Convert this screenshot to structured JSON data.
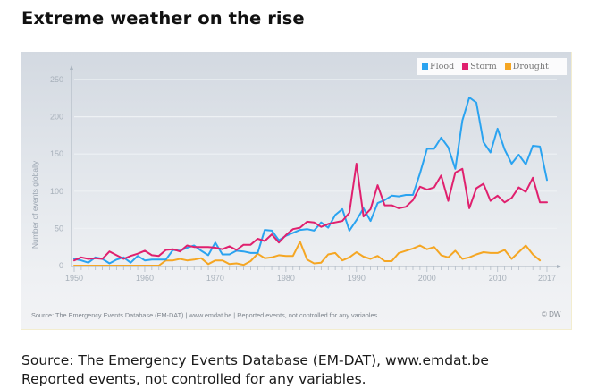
{
  "page": {
    "title": "Extreme weather on the rise",
    "footer_lines": [
      "Source: The Emergency Events Database (EM-DAT), www.emdat.be",
      "Reported events, not controlled for any variables."
    ]
  },
  "panel": {
    "source_note": "Source: The Emergency Events Database (EM-DAT) | www.emdat.be | Reported events, not controlled for any variables",
    "credit": "© DW"
  },
  "chart_data": {
    "type": "line",
    "title": "Extreme weather on the rise",
    "xlabel": "",
    "ylabel": "Number of events globally",
    "xlim": [
      1950,
      2017
    ],
    "ylim": [
      0,
      250
    ],
    "yticks": [
      0,
      50,
      100,
      150,
      200,
      250
    ],
    "xticks": [
      1950,
      1960,
      1970,
      1980,
      1990,
      2000,
      2010,
      2017
    ],
    "grid": true,
    "legend_position": "top-right",
    "x": [
      1950,
      1951,
      1952,
      1953,
      1954,
      1955,
      1956,
      1957,
      1958,
      1959,
      1960,
      1961,
      1962,
      1963,
      1964,
      1965,
      1966,
      1967,
      1968,
      1969,
      1970,
      1971,
      1972,
      1973,
      1974,
      1975,
      1976,
      1977,
      1978,
      1979,
      1980,
      1981,
      1982,
      1983,
      1984,
      1985,
      1986,
      1987,
      1988,
      1989,
      1990,
      1991,
      1992,
      1993,
      1994,
      1995,
      1996,
      1997,
      1998,
      1999,
      2000,
      2001,
      2002,
      2003,
      2004,
      2005,
      2006,
      2007,
      2008,
      2009,
      2010,
      2011,
      2012,
      2013,
      2014,
      2015,
      2016,
      2017
    ],
    "series": [
      {
        "name": "Flood",
        "color": "#2aa3f0",
        "values": [
          9,
          7,
          4,
          11,
          9,
          3,
          8,
          11,
          4,
          13,
          7,
          8,
          8,
          8,
          21,
          20,
          24,
          27,
          20,
          14,
          31,
          15,
          15,
          20,
          19,
          17,
          17,
          48,
          47,
          34,
          40,
          44,
          48,
          49,
          47,
          58,
          51,
          68,
          76,
          47,
          61,
          77,
          60,
          84,
          88,
          94,
          93,
          95,
          95,
          124,
          157,
          157,
          172,
          159,
          130,
          195,
          226,
          219,
          166,
          152,
          184,
          156,
          137,
          149,
          136,
          161,
          160,
          115
        ]
      },
      {
        "name": "Storm",
        "color": "#e0206e",
        "values": [
          7,
          11,
          9,
          10,
          9,
          19,
          14,
          9,
          13,
          16,
          20,
          14,
          13,
          21,
          22,
          19,
          27,
          25,
          25,
          25,
          24,
          22,
          26,
          21,
          28,
          28,
          36,
          33,
          42,
          31,
          41,
          49,
          51,
          59,
          58,
          52,
          56,
          58,
          60,
          71,
          137,
          66,
          76,
          108,
          81,
          81,
          77,
          79,
          88,
          106,
          102,
          105,
          121,
          87,
          125,
          130,
          77,
          104,
          110,
          87,
          94,
          85,
          91,
          105,
          99,
          118,
          85,
          85
        ]
      },
      {
        "name": "Drought",
        "color": "#f5a623",
        "values": [
          0,
          0,
          0,
          0,
          0,
          0,
          0,
          0,
          0,
          0,
          0,
          0,
          0,
          7,
          7,
          9,
          7,
          8,
          10,
          2,
          7,
          7,
          2,
          3,
          1,
          6,
          16,
          10,
          11,
          14,
          13,
          13,
          32,
          8,
          3,
          4,
          15,
          17,
          7,
          11,
          18,
          12,
          9,
          13,
          6,
          6,
          17,
          20,
          23,
          27,
          22,
          25,
          14,
          11,
          20,
          9,
          11,
          15,
          18,
          17,
          17,
          21,
          9,
          18,
          27,
          15,
          7,
          null
        ]
      }
    ]
  }
}
